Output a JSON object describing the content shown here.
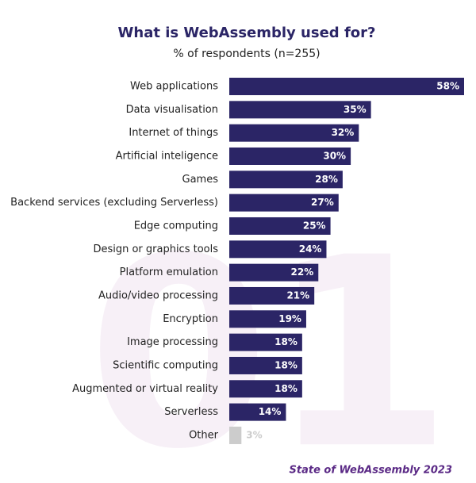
{
  "chart_data": {
    "type": "bar",
    "orientation": "horizontal",
    "title": "What is WebAssembly used for?",
    "subtitle": "% of respondents (n=255)",
    "categories": [
      "Web applications",
      "Data visualisation",
      "Internet of things",
      "Artificial inteligence",
      "Games",
      "Backend services (excluding Serverless)",
      "Edge computing",
      "Design or graphics tools",
      "Platform emulation",
      "Audio/video processing",
      "Encryption",
      "Image processing",
      "Scientific computing",
      "Augmented or virtual reality",
      "Serverless",
      "Other"
    ],
    "values": [
      58,
      35,
      32,
      30,
      28,
      27,
      25,
      24,
      22,
      21,
      19,
      18,
      18,
      18,
      14,
      3
    ],
    "value_labels": [
      "58%",
      "35%",
      "32%",
      "30%",
      "28%",
      "27%",
      "25%",
      "24%",
      "22%",
      "21%",
      "19%",
      "18%",
      "18%",
      "18%",
      "14%",
      "3%"
    ],
    "colors": [
      "#2b2566",
      "#2b2566",
      "#2b2566",
      "#2b2566",
      "#2b2566",
      "#2b2566",
      "#2b2566",
      "#2b2566",
      "#2b2566",
      "#2b2566",
      "#2b2566",
      "#2b2566",
      "#2b2566",
      "#2b2566",
      "#2b2566",
      "#cccccc"
    ],
    "watermark": "01",
    "source": "State of WebAssembly 2023"
  }
}
